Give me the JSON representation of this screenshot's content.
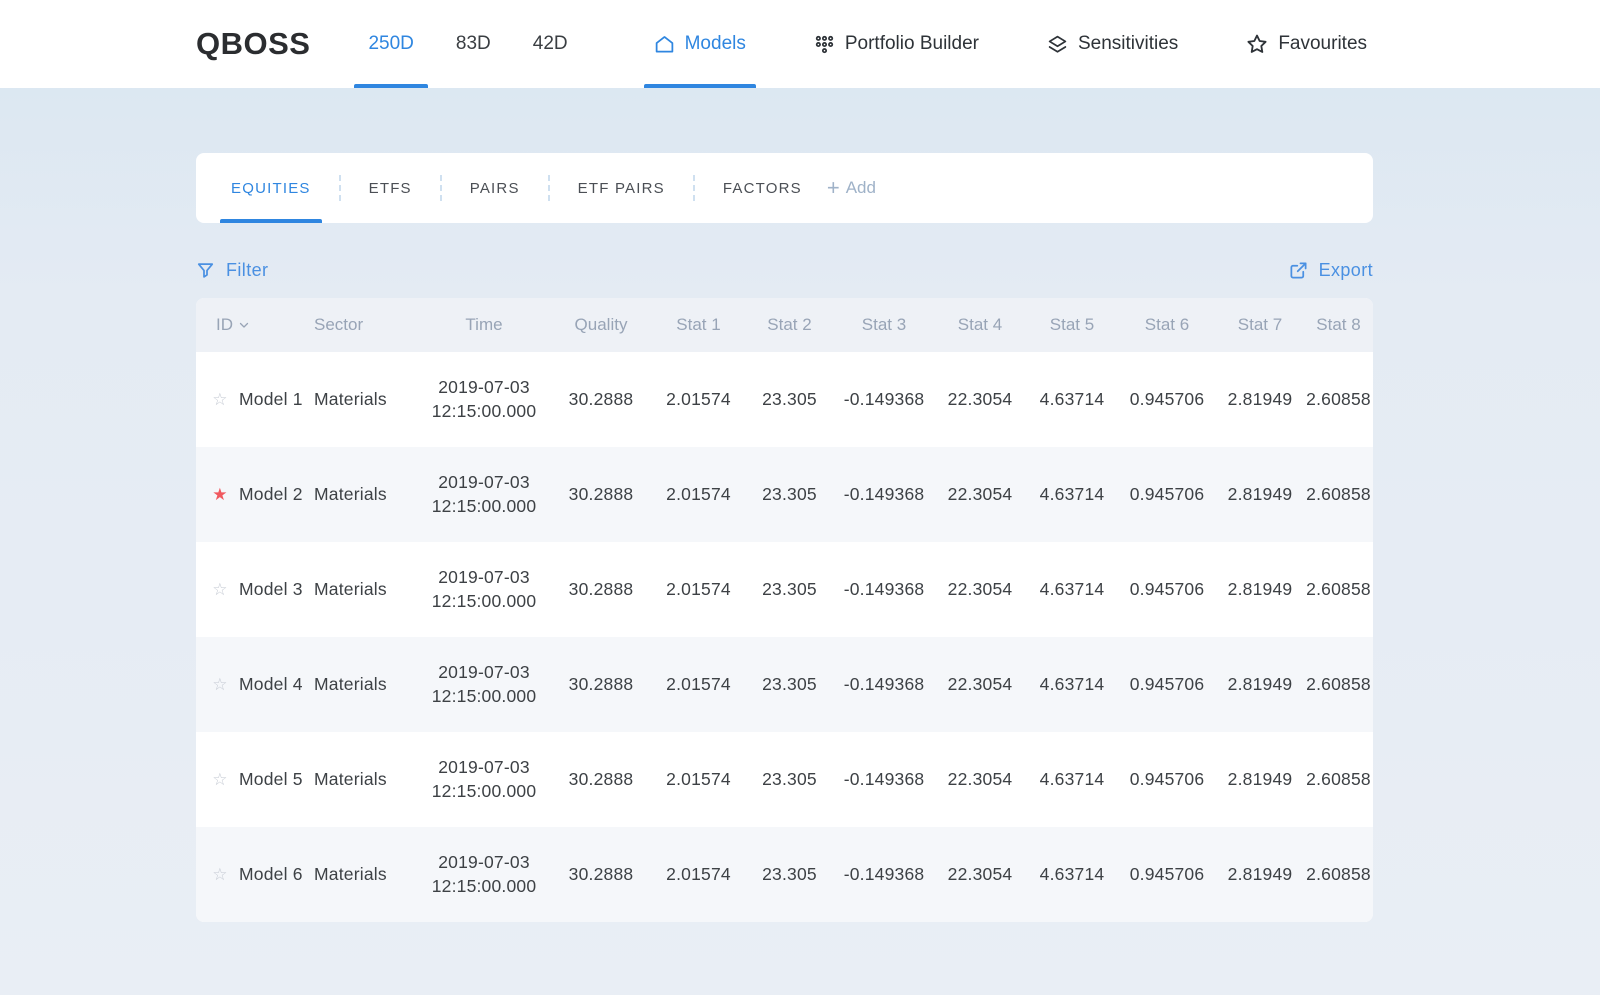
{
  "brand": "QBOSS",
  "header": {
    "period_tabs": [
      {
        "label": "250D",
        "active": true
      },
      {
        "label": "83D",
        "active": false
      },
      {
        "label": "42D",
        "active": false
      }
    ],
    "nav": [
      {
        "label": "Models",
        "icon": "home-icon",
        "active": true
      },
      {
        "label": "Portfolio Builder",
        "icon": "grid-dots-icon",
        "active": false
      },
      {
        "label": "Sensitivities",
        "icon": "layers-icon",
        "active": false
      },
      {
        "label": "Favourites",
        "icon": "star-icon",
        "active": false
      }
    ]
  },
  "category_tabs": {
    "tabs": [
      {
        "label": "EQUITIES",
        "active": true
      },
      {
        "label": "ETFS",
        "active": false
      },
      {
        "label": "PAIRS",
        "active": false
      },
      {
        "label": "ETF PAIRS",
        "active": false
      },
      {
        "label": "FACTORS",
        "active": false
      }
    ],
    "add_label": "Add"
  },
  "toolbar": {
    "filter_label": "Filter",
    "export_label": "Export"
  },
  "table": {
    "columns": [
      "ID",
      "Sector",
      "Time",
      "Quality",
      "Stat 1",
      "Stat 2",
      "Stat 3",
      "Stat 4",
      "Stat 5",
      "Stat 6",
      "Stat 7",
      "Stat 8"
    ],
    "rows": [
      {
        "id": "Model 1",
        "favourite": false,
        "sector": "Materials",
        "date": "2019-07-03",
        "time": "12:15:00.000",
        "quality": "30.2888",
        "stats": [
          "2.01574",
          "23.305",
          "-0.149368",
          "22.3054",
          "4.63714",
          "0.945706",
          "2.81949",
          "2.60858"
        ]
      },
      {
        "id": "Model 2",
        "favourite": true,
        "sector": "Materials",
        "date": "2019-07-03",
        "time": "12:15:00.000",
        "quality": "30.2888",
        "stats": [
          "2.01574",
          "23.305",
          "-0.149368",
          "22.3054",
          "4.63714",
          "0.945706",
          "2.81949",
          "2.60858"
        ]
      },
      {
        "id": "Model 3",
        "favourite": false,
        "sector": "Materials",
        "date": "2019-07-03",
        "time": "12:15:00.000",
        "quality": "30.2888",
        "stats": [
          "2.01574",
          "23.305",
          "-0.149368",
          "22.3054",
          "4.63714",
          "0.945706",
          "2.81949",
          "2.60858"
        ]
      },
      {
        "id": "Model 4",
        "favourite": false,
        "sector": "Materials",
        "date": "2019-07-03",
        "time": "12:15:00.000",
        "quality": "30.2888",
        "stats": [
          "2.01574",
          "23.305",
          "-0.149368",
          "22.3054",
          "4.63714",
          "0.945706",
          "2.81949",
          "2.60858"
        ]
      },
      {
        "id": "Model 5",
        "favourite": false,
        "sector": "Materials",
        "date": "2019-07-03",
        "time": "12:15:00.000",
        "quality": "30.2888",
        "stats": [
          "2.01574",
          "23.305",
          "-0.149368",
          "22.3054",
          "4.63714",
          "0.945706",
          "2.81949",
          "2.60858"
        ]
      },
      {
        "id": "Model 6",
        "favourite": false,
        "sector": "Materials",
        "date": "2019-07-03",
        "time": "12:15:00.000",
        "quality": "30.2888",
        "stats": [
          "2.01574",
          "23.305",
          "-0.149368",
          "22.3054",
          "4.63714",
          "0.945706",
          "2.81949",
          "2.60858"
        ]
      }
    ]
  },
  "colors": {
    "accent": "#2f86e0",
    "link": "#4a90e2",
    "favourite_star": "#f0595f"
  }
}
